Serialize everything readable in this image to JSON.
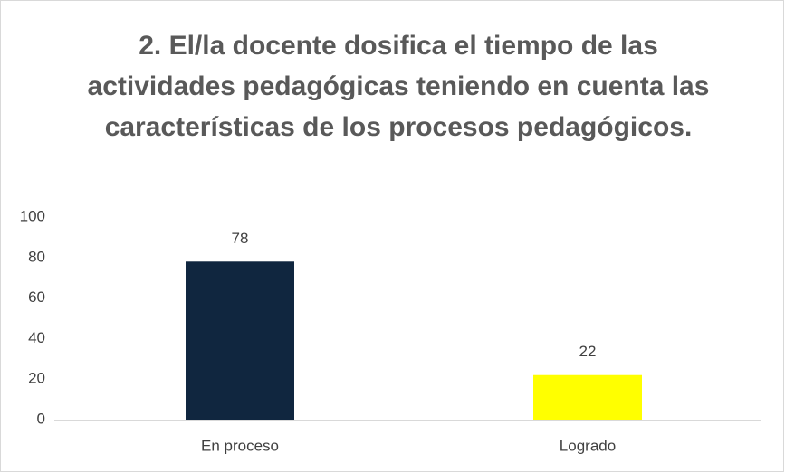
{
  "chart_data": {
    "type": "bar",
    "title": "2. El/la docente dosifica el tiempo de las actividades pedagógicas teniendo en cuenta las características de los procesos pedagógicos.",
    "categories": [
      "En proceso",
      "Logrado"
    ],
    "values": [
      78,
      22
    ],
    "colors": [
      "#10263f",
      "#ffff00"
    ],
    "ylim": [
      0,
      100
    ],
    "yticks": [
      0,
      20,
      40,
      60,
      80,
      100
    ],
    "grid": false
  }
}
